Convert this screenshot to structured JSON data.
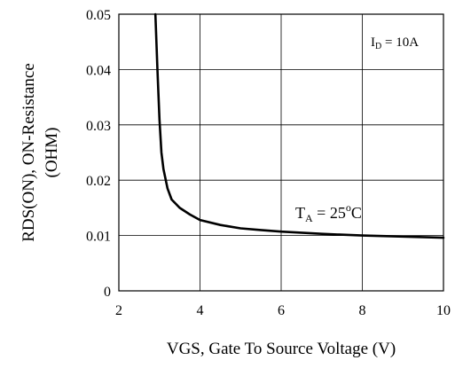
{
  "chart_data": {
    "type": "line",
    "title": "",
    "xlabel": "VGS, Gate To Source Voltage (V)",
    "ylabel_line1": "RDS(ON), ON-Resistance",
    "ylabel_line2": "(OHM)",
    "xlim": [
      2,
      10
    ],
    "ylim": [
      0,
      0.05
    ],
    "x_ticks": [
      2,
      4,
      6,
      8,
      10
    ],
    "x_tick_labels": [
      "2",
      "4",
      "6",
      "8",
      "10"
    ],
    "y_ticks": [
      0,
      0.01,
      0.02,
      0.03,
      0.04,
      0.05
    ],
    "y_tick_labels": [
      "0",
      "0.01",
      "0.02",
      "0.03",
      "0.04",
      "0.05"
    ],
    "grid": true,
    "series": [
      {
        "color": "#000000",
        "x": [
          2.9,
          2.95,
          3.0,
          3.05,
          3.1,
          3.2,
          3.3,
          3.5,
          3.75,
          4.0,
          4.5,
          5.0,
          5.5,
          6.0,
          7.0,
          8.0,
          9.0,
          10.0
        ],
        "y": [
          0.05,
          0.04,
          0.031,
          0.025,
          0.022,
          0.0185,
          0.0165,
          0.015,
          0.0138,
          0.0128,
          0.0119,
          0.0113,
          0.011,
          0.0107,
          0.0103,
          0.01,
          0.0098,
          0.0096
        ]
      }
    ],
    "annotations": {
      "id": {
        "main": "I",
        "sub": "D",
        "rest": " = 10A"
      },
      "ta": {
        "main": "T",
        "sub": "A",
        "rest": " = 25",
        "sup": "o",
        "unit": "C"
      }
    }
  }
}
